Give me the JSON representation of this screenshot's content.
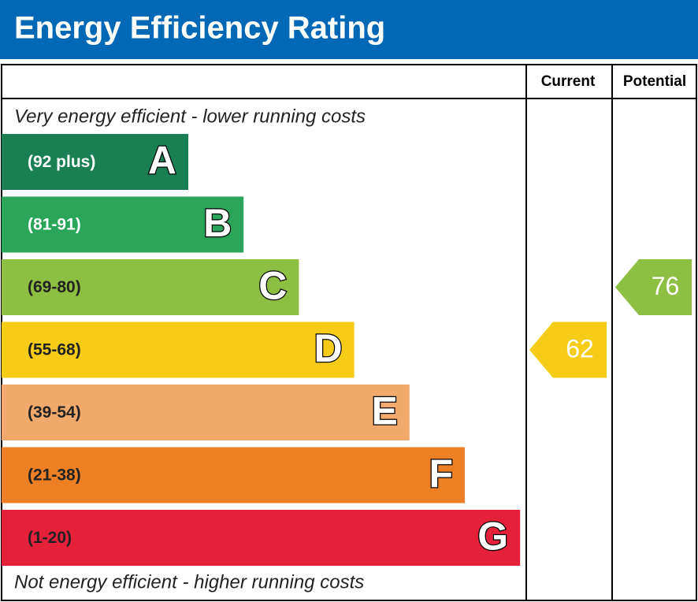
{
  "chart_data": {
    "type": "epc",
    "title": "Energy Efficiency Rating",
    "columns": [
      "Current",
      "Potential"
    ],
    "top_note": "Very energy efficient - lower running costs",
    "bottom_note": "Not energy efficient - higher running costs",
    "bands": [
      {
        "range": "(92 plus)",
        "letter": "A",
        "color": "#1a8053",
        "label_color": "#ffffff"
      },
      {
        "range": "(81-91)",
        "letter": "B",
        "color": "#2aa55a",
        "label_color": "#ffffff"
      },
      {
        "range": "(69-80)",
        "letter": "C",
        "color": "#8dbf42",
        "label_color": "#222222"
      },
      {
        "range": "(55-68)",
        "letter": "D",
        "color": "#f6cc18",
        "label_color": "#222222"
      },
      {
        "range": "(39-54)",
        "letter": "E",
        "color": "#f1aa6c",
        "label_color": "#222222"
      },
      {
        "range": "(21-38)",
        "letter": "F",
        "color": "#ed8025",
        "label_color": "#222222"
      },
      {
        "range": "(1-20)",
        "letter": "G",
        "color": "#e4203b",
        "label_color": "#222222"
      }
    ],
    "current": 62,
    "potential": 76
  }
}
